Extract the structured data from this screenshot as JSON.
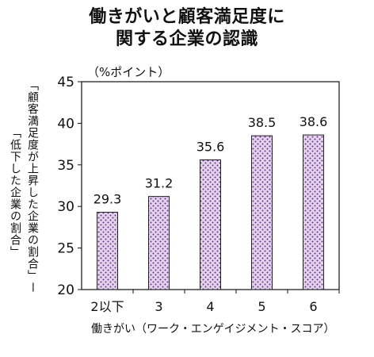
{
  "chart_data": {
    "type": "bar",
    "title_lines": [
      "働きがいと顧客満足度に",
      "関する企業の認識"
    ],
    "unit_label": "（%ポイント）",
    "ylabel_lines": [
      "「顧客満足度が上昇した企業の割合」ー",
      "「低下した企業の割合」"
    ],
    "xlabel": "働きがい（ワーク・エンゲイジメント・スコア）",
    "categories": [
      "2以下",
      "3",
      "4",
      "5",
      "6"
    ],
    "values": [
      29.3,
      31.2,
      35.6,
      38.5,
      38.6
    ],
    "value_labels": [
      "29.3",
      "31.2",
      "35.6",
      "38.5",
      "38.6"
    ],
    "yticks": [
      "20",
      "25",
      "30",
      "35",
      "40",
      "45"
    ],
    "ylim": [
      20,
      45
    ],
    "grid": false,
    "legend": "none",
    "colors": {
      "bar_fill": "#e2d2ec",
      "bar_pattern": "#6a2f86",
      "bar_stroke": "#222222",
      "axis": "#111111"
    }
  }
}
